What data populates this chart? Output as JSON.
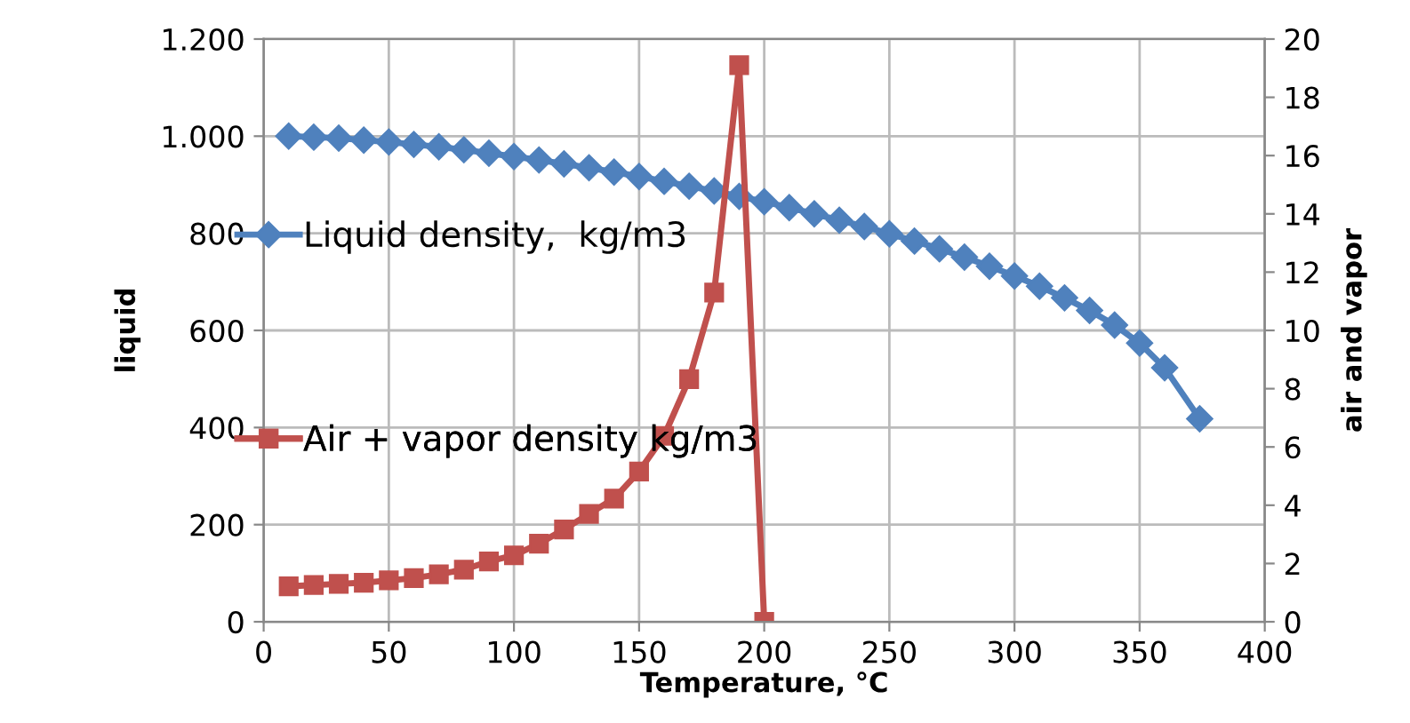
{
  "chart_data": {
    "type": "line",
    "xlabel": "Temperature, °C",
    "ylabel": "liquid",
    "y2label": "air and vapor",
    "xlim": [
      0,
      400
    ],
    "xticks": [
      0,
      50,
      100,
      150,
      200,
      250,
      300,
      350,
      400
    ],
    "ylim": [
      0,
      1200
    ],
    "yticks": [
      0,
      200,
      400,
      600,
      800,
      {
        "value": 1000,
        "label": "1.000"
      },
      {
        "value": 1200,
        "label": "1.200"
      }
    ],
    "y2lim": [
      0,
      20
    ],
    "y2ticks": [
      0,
      2,
      4,
      6,
      8,
      10,
      12,
      14,
      16,
      18,
      20
    ],
    "grid": true,
    "legend": "left",
    "series": [
      {
        "name": "Liquid density,  kg/m3",
        "color": "#4f81bd",
        "marker": "diamond",
        "x": [
          10,
          20,
          30,
          40,
          50,
          60,
          70,
          80,
          90,
          100,
          110,
          120,
          130,
          140,
          150,
          160,
          170,
          180,
          190,
          200,
          210,
          220,
          230,
          240,
          250,
          260,
          270,
          280,
          290,
          300,
          310,
          320,
          330,
          340,
          350,
          360,
          374
        ],
        "values": [
          1000,
          998,
          996,
          992,
          988,
          983,
          978,
          972,
          965,
          958,
          951,
          943,
          935,
          926,
          917,
          907,
          897,
          887,
          876,
          865,
          853,
          840,
          827,
          814,
          799,
          784,
          768,
          751,
          732,
          712,
          691,
          667,
          641,
          611,
          574,
          523,
          418
        ]
      },
      {
        "name": "Air + vapor density kg/m3",
        "color": "#c0504d",
        "marker": "square",
        "axis": "y2",
        "x": [
          10,
          20,
          30,
          40,
          50,
          60,
          70,
          80,
          90,
          100,
          110,
          120,
          130,
          140,
          150,
          160,
          170,
          180,
          190,
          200
        ],
        "values": [
          1.22,
          1.26,
          1.3,
          1.34,
          1.42,
          1.5,
          1.63,
          1.79,
          2.07,
          2.28,
          2.68,
          3.17,
          3.7,
          4.23,
          5.16,
          6.38,
          8.33,
          11.3,
          19.1,
          0
        ]
      }
    ]
  }
}
